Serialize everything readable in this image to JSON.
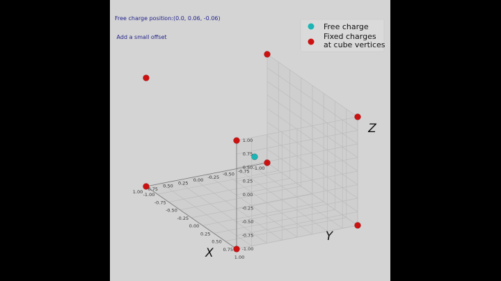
{
  "annotation": {
    "line1": "Free charge position:(0.0, 0.06, -0.06)",
    "line2": " Add a small offset"
  },
  "colors": {
    "panel_background": "#d4d4d4",
    "pane": "#cfcfcf",
    "grid": "#bcbcbc",
    "free_charge": "#1cb5b5",
    "fixed_charges": "#cc1111",
    "annotation_text": "#1f1f8a"
  },
  "chart_data": {
    "type": "scatter",
    "projection": "3d",
    "xlabel": "X",
    "ylabel": "Y",
    "zlabel": "Z",
    "xlim": [
      -1.0,
      1.0
    ],
    "ylim": [
      -1.0,
      1.0
    ],
    "zlim": [
      -1.0,
      1.0
    ],
    "x_ticks": [
      "-1.00",
      "-0.75",
      "-0.50",
      "-0.25",
      "0.00",
      "0.25",
      "0.50",
      "0.75",
      "1.00"
    ],
    "y_ticks": [
      "-1.00",
      "-0.75",
      "-0.50",
      "-0.25",
      "0.00",
      "0.25",
      "0.50",
      "0.75",
      "1.00"
    ],
    "z_ticks": [
      "-1.00",
      "-0.75",
      "-0.50",
      "-0.25",
      "0.00",
      "0.25",
      "0.50",
      "0.75",
      "1.00"
    ],
    "grid": true,
    "legend_position": "top-right",
    "series": [
      {
        "name": "Free charge",
        "color": "#1cb5b5",
        "points": [
          [
            0.0,
            0.06,
            -0.06
          ]
        ]
      },
      {
        "name": "Fixed charges\nat cube vertices",
        "color": "#cc1111",
        "points": [
          [
            1,
            1,
            1
          ],
          [
            1,
            1,
            -1
          ],
          [
            1,
            -1,
            1
          ],
          [
            1,
            -1,
            -1
          ],
          [
            -1,
            1,
            1
          ],
          [
            -1,
            1,
            -1
          ],
          [
            -1,
            -1,
            1
          ],
          [
            -1,
            -1,
            -1
          ]
        ]
      }
    ]
  }
}
